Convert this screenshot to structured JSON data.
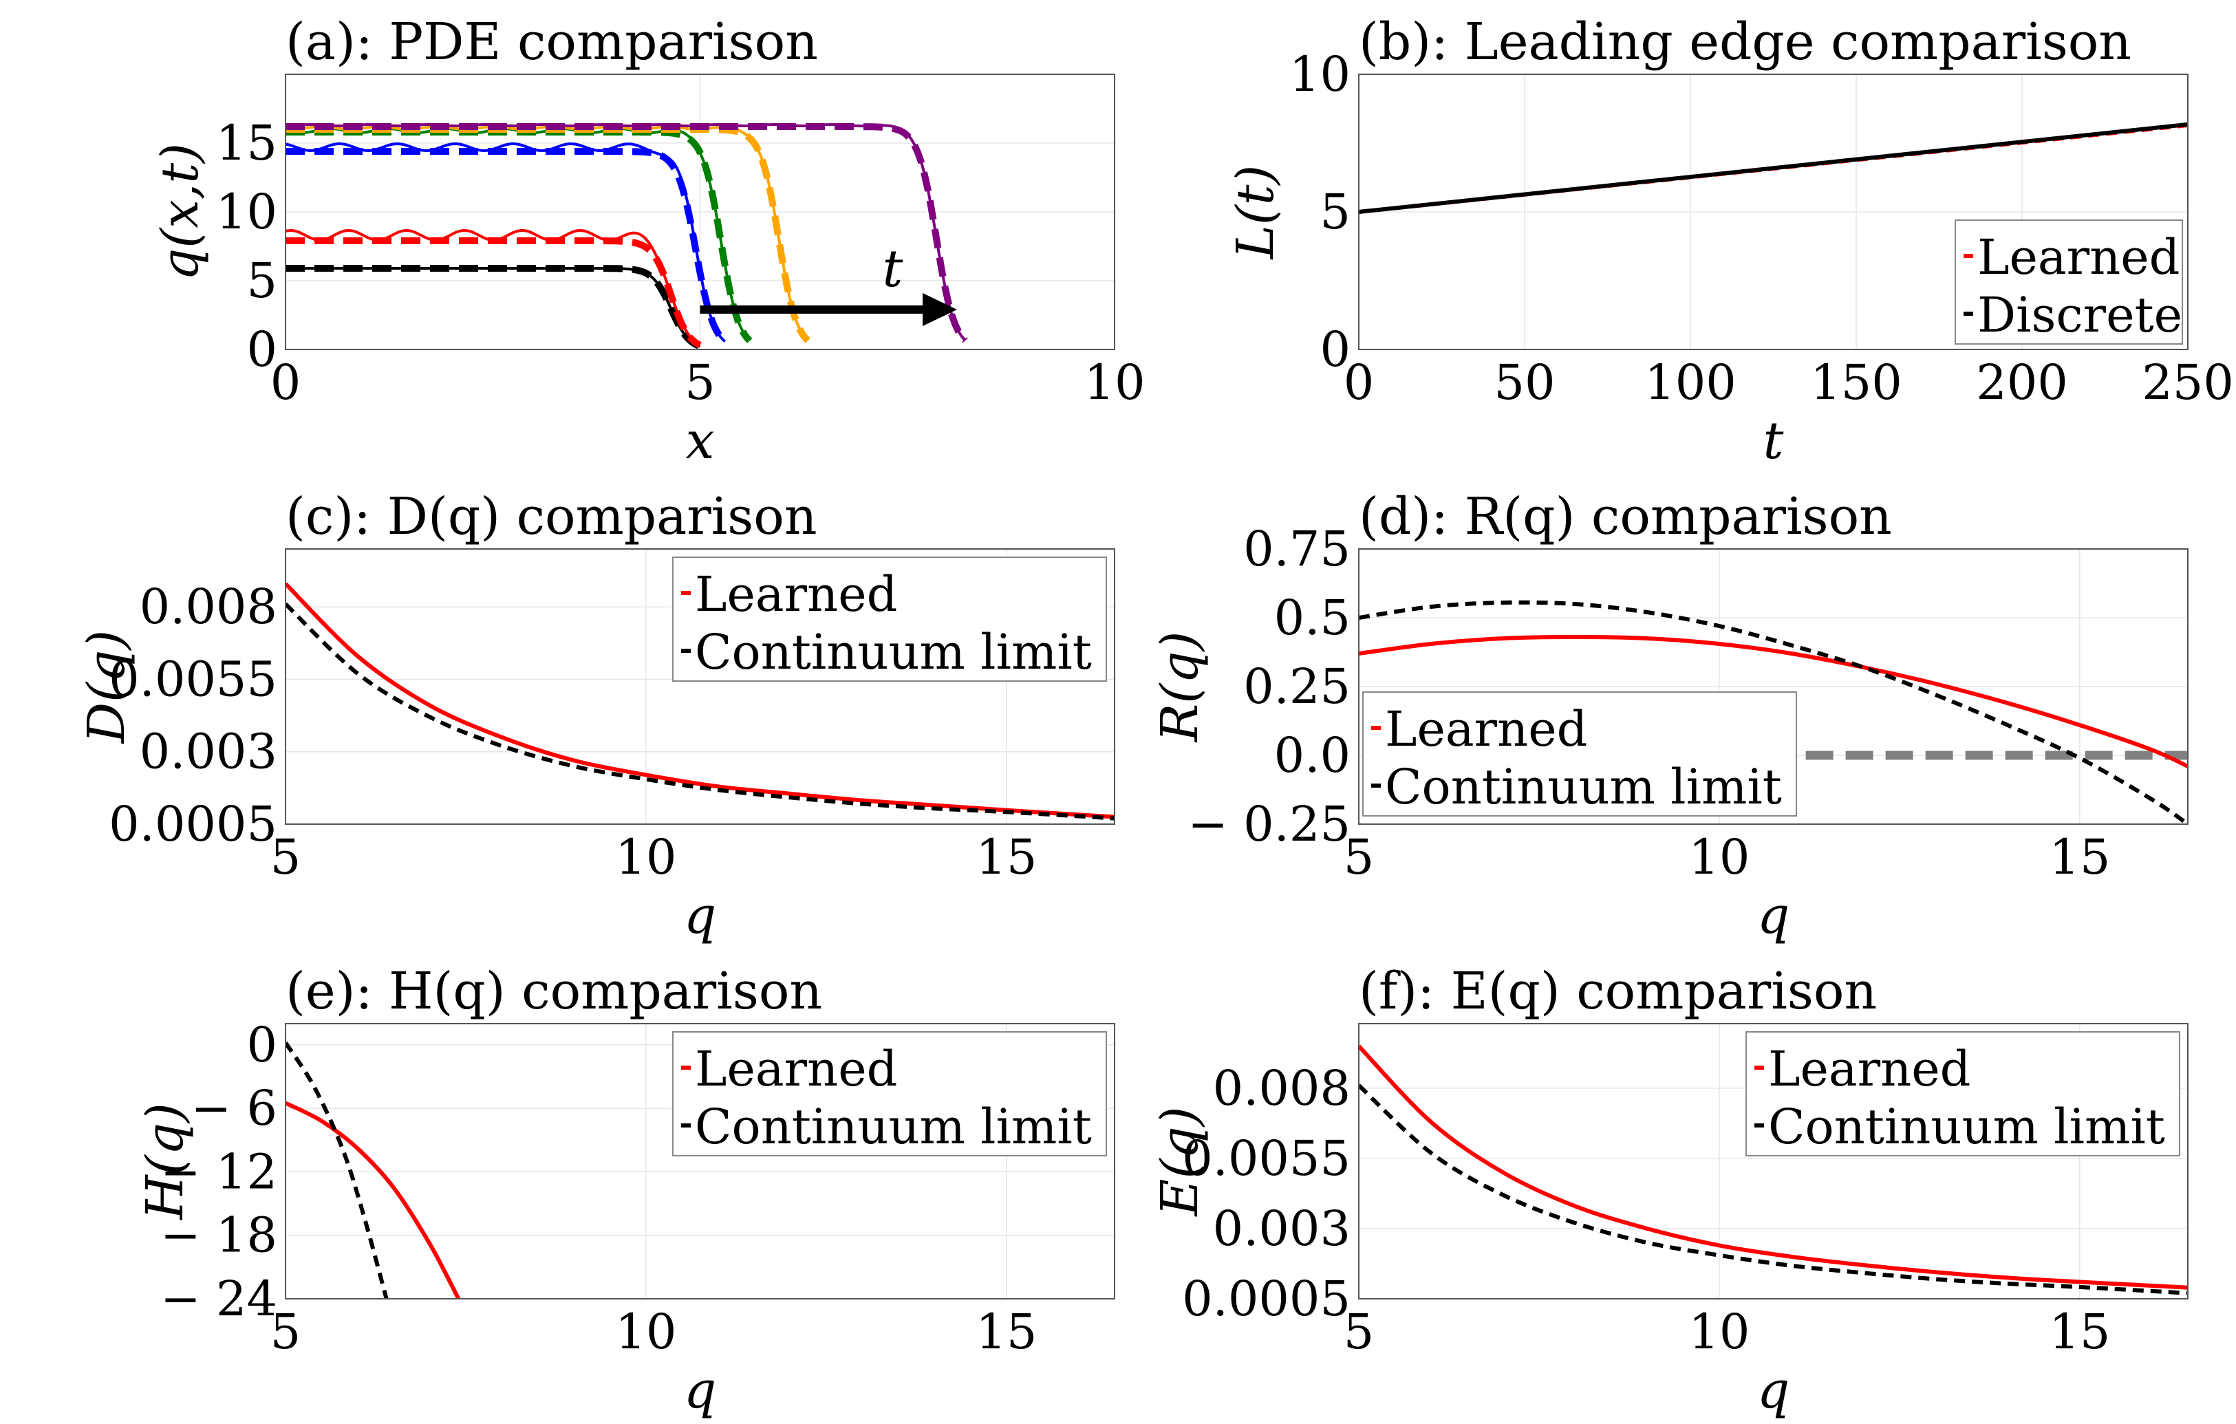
{
  "chart_data": [
    {
      "panel": "a",
      "type": "line",
      "title": "(a): PDE comparison",
      "xlabel": "x",
      "ylabel": "q(x,t)",
      "xlim": [
        0,
        10
      ],
      "ylim": [
        0,
        20
      ],
      "xticks": [
        "0",
        "5",
        "10"
      ],
      "yticks": [
        "0",
        "5",
        "10",
        "15"
      ],
      "annotation": "t",
      "grid": true,
      "series": [
        {
          "color": "#000000",
          "plateau_learned": 5.9,
          "plateau_discrete": 5.9,
          "front": 5.0,
          "wiggle": 0.0
        },
        {
          "color": "#ff0000",
          "plateau_learned": 8.3,
          "plateau_discrete": 7.9,
          "front": 5.0,
          "wiggle": 0.35
        },
        {
          "color": "#0000ff",
          "plateau_learned": 14.7,
          "plateau_discrete": 14.4,
          "front": 5.3,
          "wiggle": 0.25
        },
        {
          "color": "#008000",
          "plateau_learned": 15.9,
          "plateau_discrete": 15.8,
          "front": 5.6,
          "wiggle": 0.15
        },
        {
          "color": "#ffa500",
          "plateau_learned": 16.1,
          "plateau_discrete": 16.0,
          "front": 6.3,
          "wiggle": 0.1
        },
        {
          "color": "#800080",
          "plateau_learned": 16.3,
          "plateau_discrete": 16.2,
          "front": 8.2,
          "wiggle": 0.05
        }
      ]
    },
    {
      "panel": "b",
      "type": "line",
      "title": "(b): Leading edge comparison",
      "xlabel": "t",
      "ylabel": "L(t)",
      "xlim": [
        0,
        250
      ],
      "ylim": [
        0,
        10
      ],
      "xticks": [
        "0",
        "50",
        "100",
        "150",
        "200",
        "250"
      ],
      "yticks": [
        "0",
        "5",
        "10"
      ],
      "legend": [
        "Learned",
        "Discrete"
      ],
      "legend_position": "bottom-right",
      "series": [
        {
          "name": "Learned",
          "color": "#ff0000",
          "style": "dashed",
          "x": [
            0,
            250
          ],
          "y": [
            5.0,
            8.15
          ]
        },
        {
          "name": "Discrete",
          "color": "#000000",
          "style": "solid",
          "x": [
            0,
            250
          ],
          "y": [
            5.0,
            8.18
          ]
        }
      ]
    },
    {
      "panel": "c",
      "type": "line",
      "title": "(c): D(q) comparison",
      "xlabel": "q",
      "ylabel": "D(q)",
      "xlim": [
        5,
        16.5
      ],
      "ylim": [
        0.0005,
        0.01
      ],
      "xticks": [
        "5",
        "10",
        "15"
      ],
      "yticks": [
        "0.0005",
        "0.003",
        "0.0055",
        "0.008"
      ],
      "legend": [
        "Learned",
        "Continuum limit"
      ],
      "legend_position": "top-right",
      "series": [
        {
          "name": "Learned",
          "color": "#ff0000",
          "style": "solid",
          "x": [
            5,
            6,
            7,
            8,
            9,
            10,
            11,
            12,
            13,
            14,
            15,
            16.5
          ],
          "y": [
            0.0088,
            0.0063,
            0.0046,
            0.0035,
            0.0027,
            0.0022,
            0.0018,
            0.00155,
            0.00132,
            0.00115,
            0.00098,
            0.00075
          ]
        },
        {
          "name": "Continuum limit",
          "color": "#000000",
          "style": "dashed",
          "x": [
            5,
            6,
            7,
            8,
            9,
            10,
            11,
            12,
            13,
            14,
            15,
            16.5
          ],
          "y": [
            0.0081,
            0.0057,
            0.0042,
            0.0032,
            0.0025,
            0.00205,
            0.00168,
            0.00142,
            0.0012,
            0.00104,
            0.00092,
            0.0007
          ]
        }
      ]
    },
    {
      "panel": "d",
      "type": "line",
      "title": "(d): R(q) comparison",
      "xlabel": "q",
      "ylabel": "R(q)",
      "xlim": [
        5,
        16.5
      ],
      "ylim": [
        -0.25,
        0.75
      ],
      "xticks": [
        "5",
        "10",
        "15"
      ],
      "yticks": [
        "− 0.25",
        "0.0",
        "0.25",
        "0.5",
        "0.75"
      ],
      "legend": [
        "Learned",
        "Continuum limit"
      ],
      "legend_position": "bottom-left",
      "reference_line": {
        "y": 0.0,
        "x_from": 11.2,
        "color": "#808080",
        "style": "dashed"
      },
      "series": [
        {
          "name": "Learned",
          "color": "#ff0000",
          "style": "solid",
          "x": [
            5,
            6,
            7,
            8,
            9,
            10,
            11,
            12,
            13,
            14,
            15,
            16,
            16.5
          ],
          "y": [
            0.37,
            0.405,
            0.425,
            0.43,
            0.425,
            0.405,
            0.37,
            0.32,
            0.26,
            0.19,
            0.11,
            0.02,
            -0.04
          ]
        },
        {
          "name": "Continuum limit",
          "color": "#000000",
          "style": "dashed",
          "x": [
            5,
            6,
            7,
            8,
            9,
            10,
            11,
            12,
            13,
            14,
            15,
            16,
            16.5
          ],
          "y": [
            0.5,
            0.54,
            0.555,
            0.55,
            0.52,
            0.47,
            0.4,
            0.32,
            0.22,
            0.11,
            -0.01,
            -0.16,
            -0.25
          ]
        }
      ]
    },
    {
      "panel": "e",
      "type": "line",
      "title": "(e): H(q) comparison",
      "xlabel": "q",
      "ylabel": "H(q)",
      "xlim": [
        5,
        16.5
      ],
      "ylim": [
        -24,
        2
      ],
      "xticks": [
        "5",
        "10",
        "15"
      ],
      "yticks": [
        "− 24",
        "− 18",
        "− 12",
        "− 6",
        "0"
      ],
      "legend": [
        "Learned",
        "Continuum limit"
      ],
      "legend_position": "top-right",
      "series": [
        {
          "name": "Learned",
          "color": "#ff0000",
          "style": "solid",
          "x": [
            5,
            5.5,
            6,
            6.5,
            7,
            7.4
          ],
          "y": [
            -5.5,
            -7.2,
            -9.8,
            -13.5,
            -18.8,
            -24
          ]
        },
        {
          "name": "Continuum limit",
          "color": "#000000",
          "style": "dashed",
          "x": [
            5,
            5.4,
            5.8,
            6.1,
            6.4
          ],
          "y": [
            0.2,
            -4.0,
            -10.0,
            -16.5,
            -24
          ]
        }
      ]
    },
    {
      "panel": "f",
      "type": "line",
      "title": "(f): E(q) comparison",
      "xlabel": "q",
      "ylabel": "E(q)",
      "xlim": [
        5,
        16.5
      ],
      "ylim": [
        0.0005,
        0.0103
      ],
      "xticks": [
        "5",
        "10",
        "15"
      ],
      "yticks": [
        "0.0005",
        "0.003",
        "0.0055",
        "0.008"
      ],
      "legend": [
        "Learned",
        "Continuum limit"
      ],
      "legend_position": "top-right",
      "series": [
        {
          "name": "Learned",
          "color": "#ff0000",
          "style": "solid",
          "x": [
            5,
            6,
            7,
            8,
            9,
            10,
            11,
            12,
            13,
            14,
            15,
            16.5
          ],
          "y": [
            0.0095,
            0.0068,
            0.005,
            0.0038,
            0.003,
            0.0024,
            0.002,
            0.0017,
            0.00145,
            0.00125,
            0.0011,
            0.0009
          ]
        },
        {
          "name": "Continuum limit",
          "color": "#000000",
          "style": "dashed",
          "x": [
            5,
            6,
            7,
            8,
            9,
            10,
            11,
            12,
            13,
            14,
            15,
            16.5
          ],
          "y": [
            0.0081,
            0.0057,
            0.0042,
            0.0032,
            0.0025,
            0.00205,
            0.00168,
            0.00142,
            0.0012,
            0.00104,
            0.00092,
            0.0007
          ]
        }
      ]
    }
  ]
}
